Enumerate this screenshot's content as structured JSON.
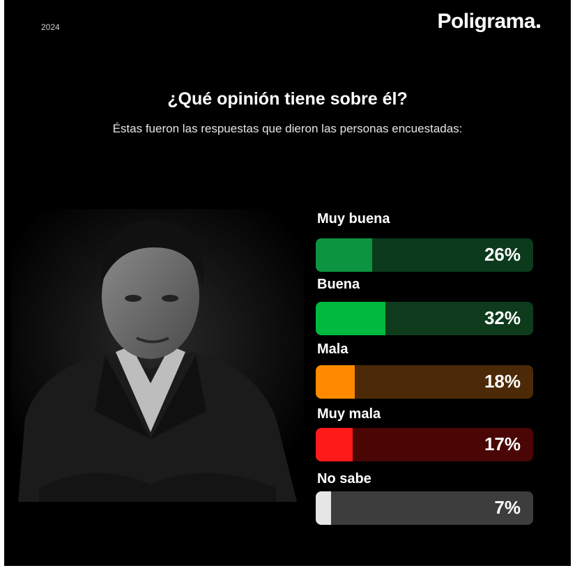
{
  "header": {
    "year": "2024",
    "brand": "Poligrama"
  },
  "title": "¿Qué opinión tiene sobre él?",
  "subtitle": "Éstas fueron las respuestas que dieron las personas encuestadas:",
  "chart_data": {
    "type": "bar",
    "orientation": "horizontal",
    "title": "¿Qué opinión tiene sobre él?",
    "categories": [
      "Muy buena",
      "Buena",
      "Mala",
      "Muy mala",
      "No sabe"
    ],
    "values": [
      26,
      32,
      18,
      17,
      7
    ],
    "value_labels": [
      "26%",
      "32%",
      "18%",
      "17%",
      "7%"
    ],
    "unit": "%",
    "xlim": [
      0,
      100
    ],
    "colors": [
      {
        "fill": "#0d9440",
        "track": "#0b3a1d"
      },
      {
        "fill": "#00b93e",
        "track": "#0d3b1c"
      },
      {
        "fill": "#ff8a00",
        "track": "#4d2a07"
      },
      {
        "fill": "#ff1a1a",
        "track": "#4a0505"
      },
      {
        "fill": "#e6e6e6",
        "track": "#3d3d3d"
      }
    ]
  }
}
